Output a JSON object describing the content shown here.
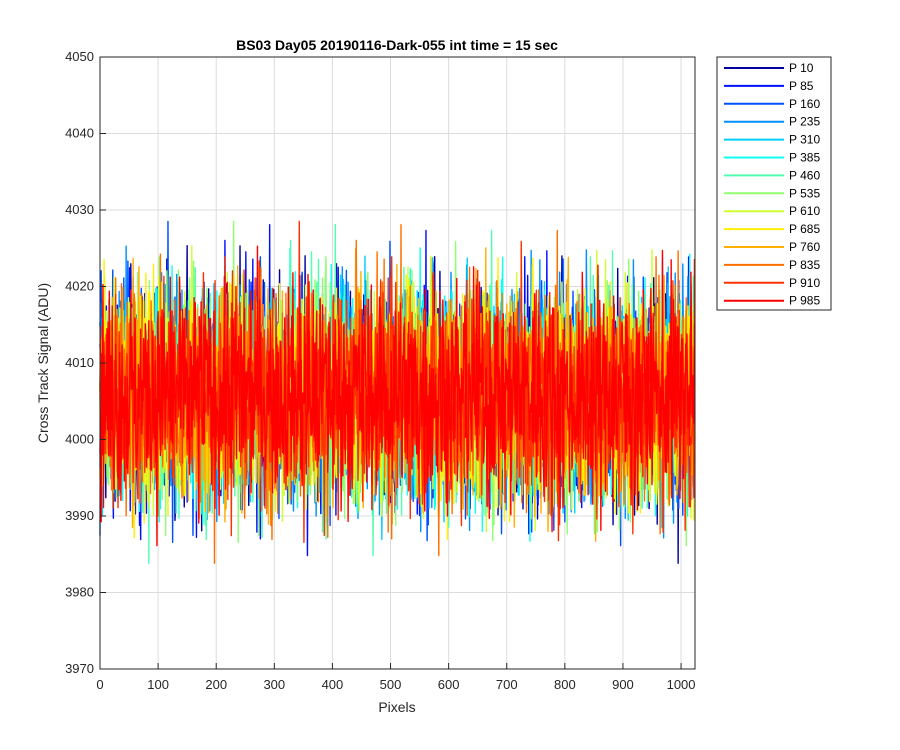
{
  "chart_data": {
    "type": "line",
    "title": "BS03 Day05 20190116-Dark-055 int time = 15 sec",
    "xlabel": "Pixels",
    "ylabel": "Cross Track Signal (ADU)",
    "xlim": [
      0,
      1024
    ],
    "ylim": [
      3970,
      4050
    ],
    "xticks": [
      0,
      100,
      200,
      300,
      400,
      500,
      600,
      700,
      800,
      900,
      1000
    ],
    "yticks": [
      3970,
      3980,
      3990,
      4000,
      4010,
      4020,
      4030,
      4040,
      4050
    ],
    "grid": true,
    "legend_position": "outside-top-right",
    "noise_center": 4006,
    "series": [
      {
        "name": "P 10",
        "color": "#00009f"
      },
      {
        "name": "P 85",
        "color": "#0010ff"
      },
      {
        "name": "P 160",
        "color": "#0050ff"
      },
      {
        "name": "P 235",
        "color": "#0090ff"
      },
      {
        "name": "P 310",
        "color": "#00cfff"
      },
      {
        "name": "P 385",
        "color": "#10ffef"
      },
      {
        "name": "P 460",
        "color": "#50ffaf"
      },
      {
        "name": "P 535",
        "color": "#8fff70"
      },
      {
        "name": "P 610",
        "color": "#cfff30"
      },
      {
        "name": "P 685",
        "color": "#ffef00"
      },
      {
        "name": "P 760",
        "color": "#ffaf00"
      },
      {
        "name": "P 835",
        "color": "#ff7000"
      },
      {
        "name": "P 910",
        "color": "#ff3000"
      },
      {
        "name": "P 985",
        "color": "#ff0000"
      }
    ]
  }
}
